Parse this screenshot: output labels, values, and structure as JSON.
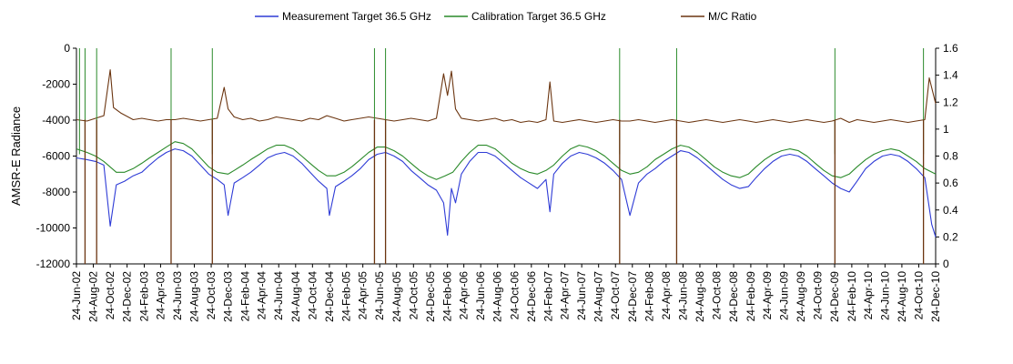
{
  "chart_data": {
    "type": "line",
    "title": "",
    "ylabel": "AMSR-E Radiance",
    "y2label": "",
    "ylim": [
      -12000,
      0
    ],
    "y_ticks": [
      0,
      -2000,
      -4000,
      -6000,
      -8000,
      -10000,
      -12000
    ],
    "y_tick_labels": [
      "0",
      "-2000",
      "-4000",
      "-6000",
      "-8000",
      "-10000",
      "-12000"
    ],
    "y2lim": [
      0,
      1.6
    ],
    "y2_ticks": [
      1.6,
      1.4,
      1.2,
      1,
      0.8,
      0.6,
      0.4,
      0.2,
      0
    ],
    "y2_tick_labels": [
      "1.6",
      "1.4",
      "1.2",
      "1",
      "0.8",
      "0.6",
      "0.4",
      "0.2",
      "0"
    ],
    "x_tick_labels": [
      "24-Jun-02",
      "24-Aug-02",
      "24-Oct-02",
      "24-Dec-02",
      "24-Feb-03",
      "24-Apr-03",
      "24-Jun-03",
      "24-Aug-03",
      "24-Oct-03",
      "24-Dec-03",
      "24-Feb-04",
      "24-Apr-04",
      "24-Jun-04",
      "24-Aug-04",
      "24-Oct-04",
      "24-Dec-04",
      "24-Feb-05",
      "24-Apr-05",
      "24-Jun-05",
      "24-Aug-05",
      "24-Oct-05",
      "24-Dec-05",
      "24-Feb-06",
      "24-Apr-06",
      "24-Jun-06",
      "24-Aug-06",
      "24-Oct-06",
      "24-Dec-06",
      "24-Feb-07",
      "24-Apr-07",
      "24-Jun-07",
      "24-Aug-07",
      "24-Oct-07",
      "24-Dec-07",
      "24-Feb-08",
      "24-Apr-08",
      "24-Jun-08",
      "24-Aug-08",
      "24-Oct-08",
      "24-Dec-08",
      "24-Feb-09",
      "24-Apr-09",
      "24-Jun-09",
      "24-Aug-09",
      "24-Oct-09",
      "24-Dec-09",
      "24-Feb-10",
      "24-Apr-10",
      "24-Jun-10",
      "24-Aug-10",
      "24-Oct-10",
      "24-Dec-10"
    ],
    "x_tick_dates": [
      "2002-06-24",
      "2002-08-24",
      "2002-10-24",
      "2002-12-24",
      "2003-02-24",
      "2003-04-24",
      "2003-06-24",
      "2003-08-24",
      "2003-10-24",
      "2003-12-24",
      "2004-02-24",
      "2004-04-24",
      "2004-06-24",
      "2004-08-24",
      "2004-10-24",
      "2004-12-24",
      "2005-02-24",
      "2005-04-24",
      "2005-06-24",
      "2005-08-24",
      "2005-10-24",
      "2005-12-24",
      "2006-02-24",
      "2006-04-24",
      "2006-06-24",
      "2006-08-24",
      "2006-10-24",
      "2006-12-24",
      "2007-02-24",
      "2007-04-24",
      "2007-06-24",
      "2007-08-24",
      "2007-10-24",
      "2007-12-24",
      "2008-02-24",
      "2008-04-24",
      "2008-06-24",
      "2008-08-24",
      "2008-10-24",
      "2008-12-24",
      "2009-02-24",
      "2009-04-24",
      "2009-06-24",
      "2009-08-24",
      "2009-10-24",
      "2009-12-24",
      "2010-02-24",
      "2010-04-24",
      "2010-06-24",
      "2010-08-24",
      "2010-10-24",
      "2010-12-24"
    ],
    "xlim": [
      "2002-06-24",
      "2010-12-24"
    ],
    "legend_position": "top",
    "grid": false,
    "series": [
      {
        "name": "Measurement Target 36.5 GHz",
        "color": "#2e3bd6",
        "axis": "left",
        "x": [
          "2002-06-24",
          "2002-08-01",
          "2002-09-01",
          "2002-10-01",
          "2002-10-24",
          "2002-11-15",
          "2002-12-15",
          "2003-01-15",
          "2003-02-15",
          "2003-03-15",
          "2003-04-15",
          "2003-05-15",
          "2003-06-15",
          "2003-07-15",
          "2003-08-15",
          "2003-09-15",
          "2003-10-15",
          "2003-11-15",
          "2003-12-10",
          "2003-12-24",
          "2004-01-15",
          "2004-02-15",
          "2004-03-15",
          "2004-04-15",
          "2004-05-15",
          "2004-06-15",
          "2004-07-15",
          "2004-08-15",
          "2004-09-15",
          "2004-10-15",
          "2004-11-15",
          "2004-12-15",
          "2004-12-24",
          "2005-01-15",
          "2005-02-15",
          "2005-03-15",
          "2005-04-15",
          "2005-05-15",
          "2005-06-15",
          "2005-07-15",
          "2005-08-15",
          "2005-09-15",
          "2005-10-15",
          "2005-11-15",
          "2005-12-15",
          "2006-01-15",
          "2006-02-10",
          "2006-02-24",
          "2006-03-10",
          "2006-03-25",
          "2006-04-15",
          "2006-05-15",
          "2006-06-15",
          "2006-07-15",
          "2006-08-15",
          "2006-09-15",
          "2006-10-15",
          "2006-11-15",
          "2006-12-15",
          "2007-01-15",
          "2007-02-15",
          "2007-03-01",
          "2007-03-15",
          "2007-04-15",
          "2007-05-15",
          "2007-06-15",
          "2007-07-15",
          "2007-08-15",
          "2007-09-15",
          "2007-10-15",
          "2007-11-15",
          "2007-12-15",
          "2008-01-15",
          "2008-02-15",
          "2008-03-15",
          "2008-04-15",
          "2008-05-15",
          "2008-06-15",
          "2008-07-15",
          "2008-08-15",
          "2008-09-15",
          "2008-10-15",
          "2008-11-15",
          "2008-12-15",
          "2009-01-15",
          "2009-02-15",
          "2009-03-15",
          "2009-04-15",
          "2009-05-15",
          "2009-06-15",
          "2009-07-15",
          "2009-08-15",
          "2009-09-15",
          "2009-10-15",
          "2009-11-15",
          "2009-12-15",
          "2010-01-15",
          "2010-02-15",
          "2010-03-15",
          "2010-04-15",
          "2010-05-15",
          "2010-06-15",
          "2010-07-15",
          "2010-08-15",
          "2010-09-15",
          "2010-10-15",
          "2010-11-15",
          "2010-12-10",
          "2010-12-24"
        ],
        "values": [
          -6100,
          -6200,
          -6300,
          -6500,
          -9900,
          -7600,
          -7400,
          -7100,
          -6900,
          -6500,
          -6100,
          -5800,
          -5600,
          -5700,
          -6000,
          -6500,
          -7000,
          -7300,
          -7600,
          -9300,
          -7500,
          -7200,
          -6900,
          -6500,
          -6100,
          -5900,
          -5800,
          -6000,
          -6400,
          -6900,
          -7400,
          -7800,
          -9300,
          -7700,
          -7400,
          -7100,
          -6700,
          -6200,
          -5900,
          -5800,
          -6000,
          -6300,
          -6800,
          -7200,
          -7600,
          -7900,
          -8600,
          -10400,
          -7800,
          -8600,
          -7000,
          -6300,
          -5800,
          -5800,
          -6000,
          -6400,
          -6800,
          -7200,
          -7500,
          -7800,
          -7300,
          -9100,
          -7000,
          -6400,
          -6000,
          -5800,
          -5900,
          -6100,
          -6400,
          -6800,
          -7300,
          -9300,
          -7500,
          -7000,
          -6700,
          -6300,
          -6000,
          -5700,
          -5800,
          -6100,
          -6500,
          -6900,
          -7300,
          -7600,
          -7800,
          -7700,
          -7200,
          -6700,
          -6300,
          -6000,
          -5900,
          -6000,
          -6300,
          -6700,
          -7100,
          -7500,
          -7800,
          -8000,
          -7400,
          -6700,
          -6300,
          -6000,
          -5900,
          -6000,
          -6300,
          -6700,
          -7200,
          -9800,
          -10500
        ]
      },
      {
        "name": "Calibration Target 36.5 GHz",
        "color": "#2a8a2a",
        "axis": "left",
        "x": [
          "2002-06-24",
          "2002-08-01",
          "2002-09-01",
          "2002-10-01",
          "2002-11-15",
          "2002-12-15",
          "2003-01-15",
          "2003-02-15",
          "2003-03-15",
          "2003-04-15",
          "2003-05-15",
          "2003-06-15",
          "2003-07-15",
          "2003-08-15",
          "2003-09-15",
          "2003-10-15",
          "2003-11-15",
          "2003-12-24",
          "2004-01-15",
          "2004-02-15",
          "2004-03-15",
          "2004-04-15",
          "2004-05-15",
          "2004-06-15",
          "2004-07-15",
          "2004-08-15",
          "2004-09-15",
          "2004-10-15",
          "2004-11-15",
          "2004-12-15",
          "2005-01-15",
          "2005-02-15",
          "2005-03-15",
          "2005-04-15",
          "2005-05-15",
          "2005-06-15",
          "2005-07-15",
          "2005-08-15",
          "2005-09-15",
          "2005-10-15",
          "2005-11-15",
          "2005-12-15",
          "2006-01-15",
          "2006-02-15",
          "2006-03-15",
          "2006-04-15",
          "2006-05-15",
          "2006-06-15",
          "2006-07-15",
          "2006-08-15",
          "2006-09-15",
          "2006-10-15",
          "2006-11-15",
          "2006-12-15",
          "2007-01-15",
          "2007-02-15",
          "2007-03-15",
          "2007-04-15",
          "2007-05-15",
          "2007-06-15",
          "2007-07-15",
          "2007-08-15",
          "2007-09-15",
          "2007-10-15",
          "2007-11-15",
          "2007-12-15",
          "2008-01-15",
          "2008-02-15",
          "2008-03-15",
          "2008-04-15",
          "2008-05-15",
          "2008-06-15",
          "2008-07-15",
          "2008-08-15",
          "2008-09-15",
          "2008-10-15",
          "2008-11-15",
          "2008-12-15",
          "2009-01-15",
          "2009-02-15",
          "2009-03-15",
          "2009-04-15",
          "2009-05-15",
          "2009-06-15",
          "2009-07-15",
          "2009-08-15",
          "2009-09-15",
          "2009-10-15",
          "2009-11-15",
          "2009-12-15",
          "2010-01-15",
          "2010-02-15",
          "2010-03-15",
          "2010-04-15",
          "2010-05-15",
          "2010-06-15",
          "2010-07-15",
          "2010-08-15",
          "2010-09-15",
          "2010-10-15",
          "2010-11-15",
          "2010-12-24"
        ],
        "values": [
          -5600,
          -5800,
          -6000,
          -6300,
          -6900,
          -6900,
          -6700,
          -6400,
          -6100,
          -5800,
          -5500,
          -5200,
          -5300,
          -5600,
          -6100,
          -6600,
          -6900,
          -7000,
          -6800,
          -6500,
          -6200,
          -5900,
          -5600,
          -5400,
          -5400,
          -5600,
          -6000,
          -6400,
          -6800,
          -7100,
          -7100,
          -6900,
          -6600,
          -6200,
          -5800,
          -5500,
          -5500,
          -5700,
          -6000,
          -6400,
          -6800,
          -7100,
          -7300,
          -7100,
          -6900,
          -6300,
          -5800,
          -5400,
          -5400,
          -5600,
          -6000,
          -6400,
          -6700,
          -6900,
          -7000,
          -6800,
          -6500,
          -6000,
          -5600,
          -5400,
          -5500,
          -5700,
          -6000,
          -6400,
          -6800,
          -7000,
          -6900,
          -6600,
          -6200,
          -5900,
          -5600,
          -5400,
          -5500,
          -5800,
          -6200,
          -6600,
          -6900,
          -7100,
          -7200,
          -7000,
          -6600,
          -6200,
          -5900,
          -5700,
          -5600,
          -5700,
          -6000,
          -6400,
          -6800,
          -7100,
          -7200,
          -7000,
          -6600,
          -6200,
          -5900,
          -5700,
          -5600,
          -5700,
          -6000,
          -6300,
          -6700,
          -7000
        ]
      },
      {
        "name": "M/C Ratio",
        "color": "#6b3510",
        "axis": "right",
        "x": [
          "2002-06-24",
          "2002-08-01",
          "2002-09-01",
          "2002-10-01",
          "2002-10-24",
          "2002-11-05",
          "2002-12-01",
          "2003-01-15",
          "2003-02-15",
          "2003-03-15",
          "2003-04-15",
          "2003-05-15",
          "2003-06-15",
          "2003-07-15",
          "2003-08-15",
          "2003-09-15",
          "2003-10-15",
          "2003-11-15",
          "2003-12-10",
          "2003-12-24",
          "2004-01-15",
          "2004-02-15",
          "2004-03-15",
          "2004-04-15",
          "2004-05-15",
          "2004-06-15",
          "2004-07-15",
          "2004-08-15",
          "2004-09-15",
          "2004-10-15",
          "2004-11-15",
          "2004-12-15",
          "2005-01-15",
          "2005-02-15",
          "2005-03-15",
          "2005-04-15",
          "2005-05-15",
          "2005-06-15",
          "2005-07-15",
          "2005-08-15",
          "2005-09-15",
          "2005-10-15",
          "2005-11-15",
          "2005-12-15",
          "2006-01-15",
          "2006-02-10",
          "2006-02-24",
          "2006-03-10",
          "2006-03-25",
          "2006-04-15",
          "2006-05-15",
          "2006-06-15",
          "2006-07-15",
          "2006-08-15",
          "2006-09-15",
          "2006-10-15",
          "2006-11-15",
          "2006-12-15",
          "2007-01-15",
          "2007-02-15",
          "2007-03-01",
          "2007-03-15",
          "2007-04-15",
          "2007-05-15",
          "2007-06-15",
          "2007-07-15",
          "2007-08-15",
          "2007-09-15",
          "2007-10-15",
          "2007-11-15",
          "2007-12-15",
          "2008-01-15",
          "2008-02-15",
          "2008-03-15",
          "2008-04-15",
          "2008-05-15",
          "2008-06-15",
          "2008-07-15",
          "2008-08-15",
          "2008-09-15",
          "2008-10-15",
          "2008-11-15",
          "2008-12-15",
          "2009-01-15",
          "2009-02-15",
          "2009-03-15",
          "2009-04-15",
          "2009-05-15",
          "2009-06-15",
          "2009-07-15",
          "2009-08-15",
          "2009-09-15",
          "2009-10-15",
          "2009-11-15",
          "2009-12-15",
          "2010-01-15",
          "2010-02-15",
          "2010-03-15",
          "2010-04-15",
          "2010-05-15",
          "2010-06-15",
          "2010-07-15",
          "2010-08-15",
          "2010-09-15",
          "2010-10-15",
          "2010-11-15",
          "2010-12-01",
          "2010-12-24"
        ],
        "values": [
          1.07,
          1.06,
          1.08,
          1.1,
          1.44,
          1.16,
          1.12,
          1.07,
          1.08,
          1.07,
          1.06,
          1.07,
          1.07,
          1.08,
          1.07,
          1.06,
          1.07,
          1.08,
          1.31,
          1.15,
          1.09,
          1.07,
          1.08,
          1.06,
          1.07,
          1.09,
          1.08,
          1.07,
          1.06,
          1.08,
          1.07,
          1.1,
          1.08,
          1.06,
          1.07,
          1.08,
          1.09,
          1.08,
          1.07,
          1.06,
          1.07,
          1.08,
          1.07,
          1.06,
          1.08,
          1.41,
          1.25,
          1.43,
          1.15,
          1.08,
          1.07,
          1.06,
          1.07,
          1.08,
          1.06,
          1.07,
          1.05,
          1.06,
          1.05,
          1.07,
          1.35,
          1.06,
          1.05,
          1.06,
          1.07,
          1.06,
          1.05,
          1.06,
          1.07,
          1.06,
          1.06,
          1.07,
          1.06,
          1.05,
          1.06,
          1.07,
          1.06,
          1.05,
          1.06,
          1.07,
          1.06,
          1.05,
          1.06,
          1.07,
          1.06,
          1.05,
          1.06,
          1.07,
          1.06,
          1.05,
          1.06,
          1.07,
          1.06,
          1.05,
          1.06,
          1.08,
          1.05,
          1.07,
          1.06,
          1.05,
          1.06,
          1.07,
          1.06,
          1.05,
          1.06,
          1.07,
          1.38,
          1.19
        ]
      }
    ],
    "annotations": [
      {
        "series": "Calibration Target 36.5 GHz",
        "kind": "dropout_spike",
        "x": [
          "2002-07-05",
          "2002-07-25",
          "2002-09-05",
          "2003-06-01",
          "2003-10-28",
          "2005-06-05",
          "2005-07-15",
          "2007-11-08",
          "2008-06-01",
          "2009-12-25",
          "2010-11-10"
        ]
      },
      {
        "series": "M/C Ratio",
        "kind": "dropout_to_zero",
        "x": [
          "2002-07-25",
          "2002-09-05",
          "2003-06-01",
          "2003-10-28",
          "2005-06-05",
          "2005-07-15",
          "2007-11-08",
          "2008-06-01",
          "2009-12-25",
          "2010-11-10"
        ]
      }
    ]
  }
}
